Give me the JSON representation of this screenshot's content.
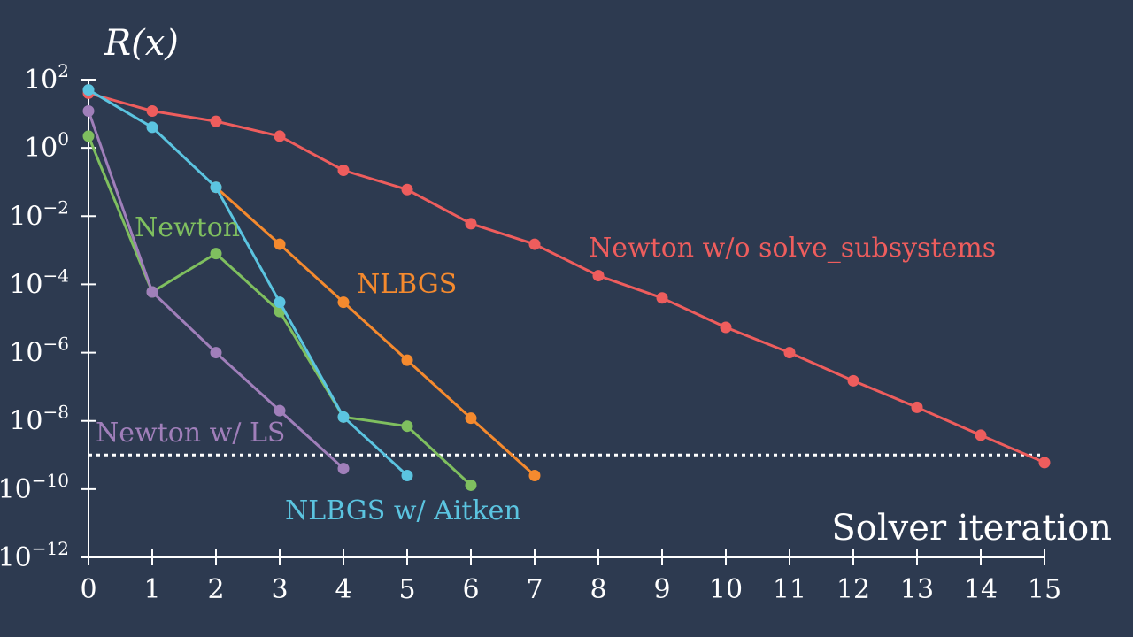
{
  "chart_data": {
    "type": "line",
    "ylabel": "R(x)",
    "xlabel": "Solver iteration",
    "y_scale": "log",
    "ylim": [
      1e-12,
      100
    ],
    "xlim": [
      0,
      15
    ],
    "x_ticks": [
      "0",
      "1",
      "2",
      "3",
      "4",
      "5",
      "6",
      "7",
      "8",
      "9",
      "10",
      "11",
      "12",
      "13",
      "14",
      "15"
    ],
    "y_ticks": [
      {
        "base": "10",
        "exp": "2",
        "value": 100
      },
      {
        "base": "10",
        "exp": "0",
        "value": 1
      },
      {
        "base": "10",
        "exp": "−2",
        "value": 0.01
      },
      {
        "base": "10",
        "exp": "−4",
        "value": 0.0001
      },
      {
        "base": "10",
        "exp": "−6",
        "value": 1e-06
      },
      {
        "base": "10",
        "exp": "−8",
        "value": 1e-08
      },
      {
        "base": "10",
        "exp": "−10",
        "value": 1e-10
      },
      {
        "base": "10",
        "exp": "−12",
        "value": 1e-12
      }
    ],
    "threshold": 1e-09,
    "grid": false,
    "background_color": "#2d3a50",
    "series": [
      {
        "name": "Newton w/o solve_subsystems",
        "color": "#ee5d5d",
        "x": [
          0,
          1,
          2,
          3,
          4,
          5,
          6,
          7,
          8,
          9,
          10,
          11,
          12,
          13,
          14,
          15
        ],
        "values": [
          40,
          12,
          6,
          2.2,
          0.22,
          0.06,
          0.006,
          0.0015,
          0.00018,
          4e-05,
          5.5e-06,
          1e-06,
          1.5e-07,
          2.5e-08,
          3.8e-09,
          6e-10
        ]
      },
      {
        "name": "NLBGS",
        "color": "#f58a2e",
        "x": [
          2,
          3,
          4,
          5,
          6,
          7
        ],
        "values": [
          0.07,
          0.0015,
          3e-05,
          6e-07,
          1.2e-08,
          2.5e-10
        ]
      },
      {
        "name": "Newton",
        "color": "#7fbf5f",
        "x": [
          0,
          1,
          2,
          3,
          4,
          5,
          6
        ],
        "values": [
          2.2,
          6e-05,
          0.0008,
          1.6e-05,
          1.3e-08,
          7e-09,
          1.3e-10
        ]
      },
      {
        "name": "NLBGS w/ Aitken",
        "color": "#5bc4e0",
        "x": [
          0,
          1,
          2,
          3,
          4,
          5
        ],
        "values": [
          50,
          4,
          0.07,
          3e-05,
          1.3e-08,
          2.5e-10
        ]
      },
      {
        "name": "Newton w/ LS",
        "color": "#a07fba",
        "x": [
          0,
          1,
          2,
          3,
          4
        ],
        "values": [
          12,
          6e-05,
          1e-06,
          2e-08,
          4e-10
        ]
      }
    ]
  }
}
